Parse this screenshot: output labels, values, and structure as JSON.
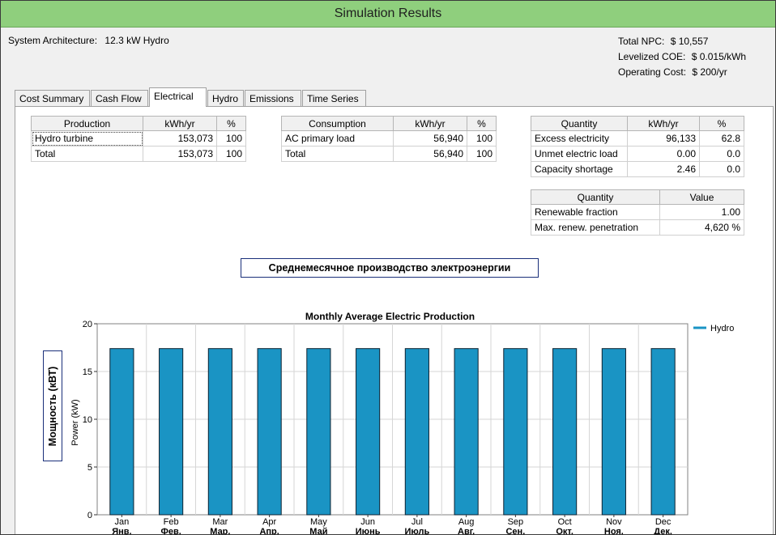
{
  "window": {
    "title": "Simulation Results"
  },
  "architecture": {
    "label": "System Architecture:",
    "value": "12.3 kW Hydro"
  },
  "summary": [
    {
      "label": "Total NPC:",
      "value": "$ 10,557"
    },
    {
      "label": "Levelized COE:",
      "value": "$ 0.015/kWh"
    },
    {
      "label": "Operating Cost:",
      "value": "$ 200/yr"
    }
  ],
  "tabs": [
    "Cost Summary",
    "Cash Flow",
    "Electrical",
    "Hydro",
    "Emissions",
    "Time Series"
  ],
  "active_tab": "Electrical",
  "production": {
    "headers": [
      "Production",
      "kWh/yr",
      "%"
    ],
    "rows": [
      [
        "Hydro turbine",
        "153,073",
        "100"
      ],
      [
        "Total",
        "153,073",
        "100"
      ]
    ]
  },
  "consumption": {
    "headers": [
      "Consumption",
      "kWh/yr",
      "%"
    ],
    "rows": [
      [
        "AC primary load",
        "56,940",
        "100"
      ],
      [
        "Total",
        "56,940",
        "100"
      ]
    ]
  },
  "quantity1": {
    "headers": [
      "Quantity",
      "kWh/yr",
      "%"
    ],
    "rows": [
      [
        "Excess electricity",
        "96,133",
        "62.8"
      ],
      [
        "Unmet electric load",
        "0.00",
        "0.0"
      ],
      [
        "Capacity shortage",
        "2.46",
        "0.0"
      ]
    ]
  },
  "quantity2": {
    "headers": [
      "Quantity",
      "Value"
    ],
    "rows": [
      [
        "Renewable fraction",
        "1.00"
      ],
      [
        "Max. renew. penetration",
        "4,620 %"
      ]
    ]
  },
  "annotation_title_ru": "Среднемесячное производство электроэнергии",
  "annotation_ylabel_ru": "Мощность (кВТ)",
  "chart_data": {
    "type": "bar",
    "title": "Monthly Average Electric Production",
    "ylabel": "Power (kW)",
    "xlabel": "",
    "categories": [
      "Jan",
      "Feb",
      "Mar",
      "Apr",
      "May",
      "Jun",
      "Jul",
      "Aug",
      "Sep",
      "Oct",
      "Nov",
      "Dec"
    ],
    "categories_ru": [
      "Янв.",
      "Фев.",
      "Мар.",
      "Апр.",
      "Май",
      "Июнь",
      "Июль",
      "Авг.",
      "Сен.",
      "Окт.",
      "Ноя.",
      "Дек."
    ],
    "series": [
      {
        "name": "Hydro",
        "values": [
          17.4,
          17.4,
          17.4,
          17.4,
          17.4,
          17.4,
          17.4,
          17.4,
          17.4,
          17.4,
          17.4,
          17.4
        ]
      }
    ],
    "yticks": [
      0,
      5,
      10,
      15,
      20
    ],
    "ylim": [
      0,
      20
    ],
    "grid": true,
    "legend": "top-right",
    "colors": {
      "bar": "#1a94c4",
      "bar_stroke": "#0d2030",
      "grid": "#d6d6d6"
    }
  }
}
